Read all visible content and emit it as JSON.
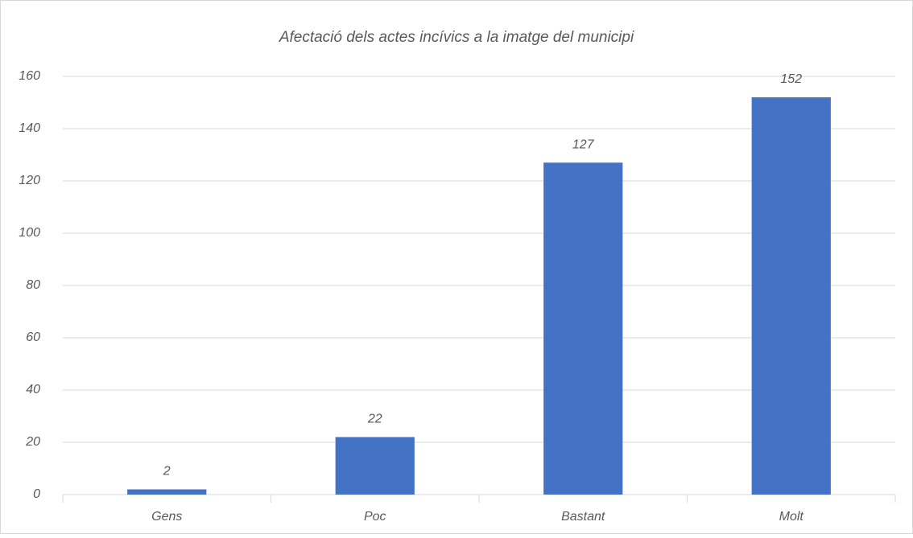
{
  "chart_data": {
    "type": "bar",
    "title": "Afectació dels actes incívics a la imatge del municipi",
    "categories": [
      "Gens",
      "Poc",
      "Bastant",
      "Molt"
    ],
    "values": [
      2,
      22,
      127,
      152
    ],
    "color": "#4472c4",
    "ylim": [
      0,
      160
    ],
    "yticks": [
      0,
      20,
      40,
      60,
      80,
      100,
      120,
      140,
      160
    ],
    "grid": true
  }
}
